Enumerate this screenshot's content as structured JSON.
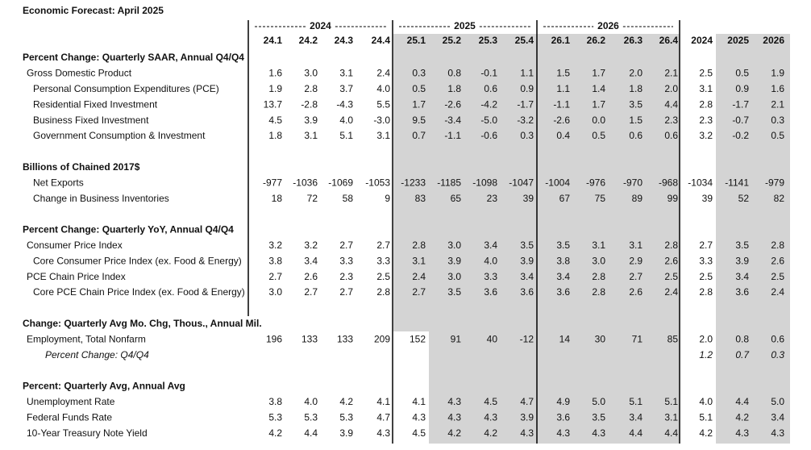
{
  "title": "Economic Forecast: April 2025",
  "column_groups": [
    "2024",
    "2025",
    "2026"
  ],
  "columns": [
    "24.1",
    "24.2",
    "24.3",
    "24.4",
    "25.1",
    "25.2",
    "25.3",
    "25.4",
    "26.1",
    "26.2",
    "26.3",
    "26.4",
    "2024",
    "2025",
    "2026"
  ],
  "sections": [
    {
      "heading": "Percent Change: Quarterly SAAR, Annual Q4/Q4",
      "rows": [
        {
          "label": "Gross Domestic Product",
          "values": [
            "1.6",
            "3.0",
            "3.1",
            "2.4",
            "0.3",
            "0.8",
            "-0.1",
            "1.1",
            "1.5",
            "1.7",
            "2.0",
            "2.1",
            "2.5",
            "0.5",
            "1.9"
          ]
        },
        {
          "label": "Personal Consumption Expenditures (PCE)",
          "values": [
            "1.9",
            "2.8",
            "3.7",
            "4.0",
            "0.5",
            "1.8",
            "0.6",
            "0.9",
            "1.1",
            "1.4",
            "1.8",
            "2.0",
            "3.1",
            "0.9",
            "1.6"
          ]
        },
        {
          "label": "Residential Fixed Investment",
          "values": [
            "13.7",
            "-2.8",
            "-4.3",
            "5.5",
            "1.7",
            "-2.6",
            "-4.2",
            "-1.7",
            "-1.1",
            "1.7",
            "3.5",
            "4.4",
            "2.8",
            "-1.7",
            "2.1"
          ]
        },
        {
          "label": "Business Fixed Investment",
          "values": [
            "4.5",
            "3.9",
            "4.0",
            "-3.0",
            "9.5",
            "-3.4",
            "-5.0",
            "-3.2",
            "-2.6",
            "0.0",
            "1.5",
            "2.3",
            "2.3",
            "-0.7",
            "0.3"
          ]
        },
        {
          "label": "Government Consumption & Investment",
          "values": [
            "1.8",
            "3.1",
            "5.1",
            "3.1",
            "0.7",
            "-1.1",
            "-0.6",
            "0.3",
            "0.4",
            "0.5",
            "0.6",
            "0.6",
            "3.2",
            "-0.2",
            "0.5"
          ]
        }
      ]
    },
    {
      "heading": "Billions of Chained 2017$",
      "rows": [
        {
          "label": "Net Exports",
          "values": [
            "-977",
            "-1036",
            "-1069",
            "-1053",
            "-1233",
            "-1185",
            "-1098",
            "-1047",
            "-1004",
            "-976",
            "-970",
            "-968",
            "-1034",
            "-1141",
            "-979"
          ]
        },
        {
          "label": "Change in Business Inventories",
          "values": [
            "18",
            "72",
            "58",
            "9",
            "83",
            "65",
            "23",
            "39",
            "67",
            "75",
            "89",
            "99",
            "39",
            "52",
            "82"
          ]
        }
      ]
    },
    {
      "heading": "Percent Change: Quarterly YoY, Annual Q4/Q4",
      "rows": [
        {
          "label": "Consumer Price Index",
          "values": [
            "3.2",
            "3.2",
            "2.7",
            "2.7",
            "2.8",
            "3.0",
            "3.4",
            "3.5",
            "3.5",
            "3.1",
            "3.1",
            "2.8",
            "2.7",
            "3.5",
            "2.8"
          ]
        },
        {
          "label": "Core Consumer Price Index (ex. Food & Energy)",
          "values": [
            "3.8",
            "3.4",
            "3.3",
            "3.3",
            "3.1",
            "3.9",
            "4.0",
            "3.9",
            "3.8",
            "3.0",
            "2.9",
            "2.6",
            "3.3",
            "3.9",
            "2.6"
          ]
        },
        {
          "label": "PCE Chain Price Index",
          "values": [
            "2.7",
            "2.6",
            "2.3",
            "2.5",
            "2.4",
            "3.0",
            "3.3",
            "3.4",
            "3.4",
            "2.8",
            "2.7",
            "2.5",
            "2.5",
            "3.4",
            "2.5"
          ]
        },
        {
          "label": "Core PCE Chain Price Index (ex. Food & Energy)",
          "values": [
            "3.0",
            "2.7",
            "2.7",
            "2.8",
            "2.7",
            "3.5",
            "3.6",
            "3.6",
            "3.6",
            "2.8",
            "2.6",
            "2.4",
            "2.8",
            "3.6",
            "2.4"
          ]
        }
      ]
    },
    {
      "heading": "Change: Quarterly Avg Mo. Chg, Thous., Annual Mil.",
      "rows": [
        {
          "label": "Employment, Total Nonfarm",
          "values": [
            "196",
            "133",
            "133",
            "209",
            "152",
            "91",
            "40",
            "-12",
            "14",
            "30",
            "71",
            "85",
            "2.0",
            "0.8",
            "0.6"
          ]
        },
        {
          "label": "Percent Change: Q4/Q4",
          "values": [
            null,
            null,
            null,
            null,
            null,
            null,
            null,
            null,
            null,
            null,
            null,
            null,
            "1.2",
            "0.7",
            "0.3"
          ]
        }
      ]
    },
    {
      "heading": "Percent: Quarterly Avg, Annual Avg",
      "rows": [
        {
          "label": "Unemployment Rate",
          "values": [
            "3.8",
            "4.0",
            "4.2",
            "4.1",
            "4.1",
            "4.3",
            "4.5",
            "4.7",
            "4.9",
            "5.0",
            "5.1",
            "5.1",
            "4.0",
            "4.4",
            "5.0"
          ]
        },
        {
          "label": "Federal Funds Rate",
          "values": [
            "5.3",
            "5.3",
            "5.3",
            "4.7",
            "4.3",
            "4.3",
            "4.3",
            "3.9",
            "3.6",
            "3.5",
            "3.4",
            "3.1",
            "5.1",
            "4.2",
            "3.4"
          ]
        },
        {
          "label": "10-Year Treasury Note Yield",
          "values": [
            "4.2",
            "4.4",
            "3.9",
            "4.3",
            "4.5",
            "4.2",
            "4.2",
            "4.3",
            "4.3",
            "4.3",
            "4.4",
            "4.4",
            "4.2",
            "4.3",
            "4.3"
          ]
        }
      ]
    }
  ]
}
